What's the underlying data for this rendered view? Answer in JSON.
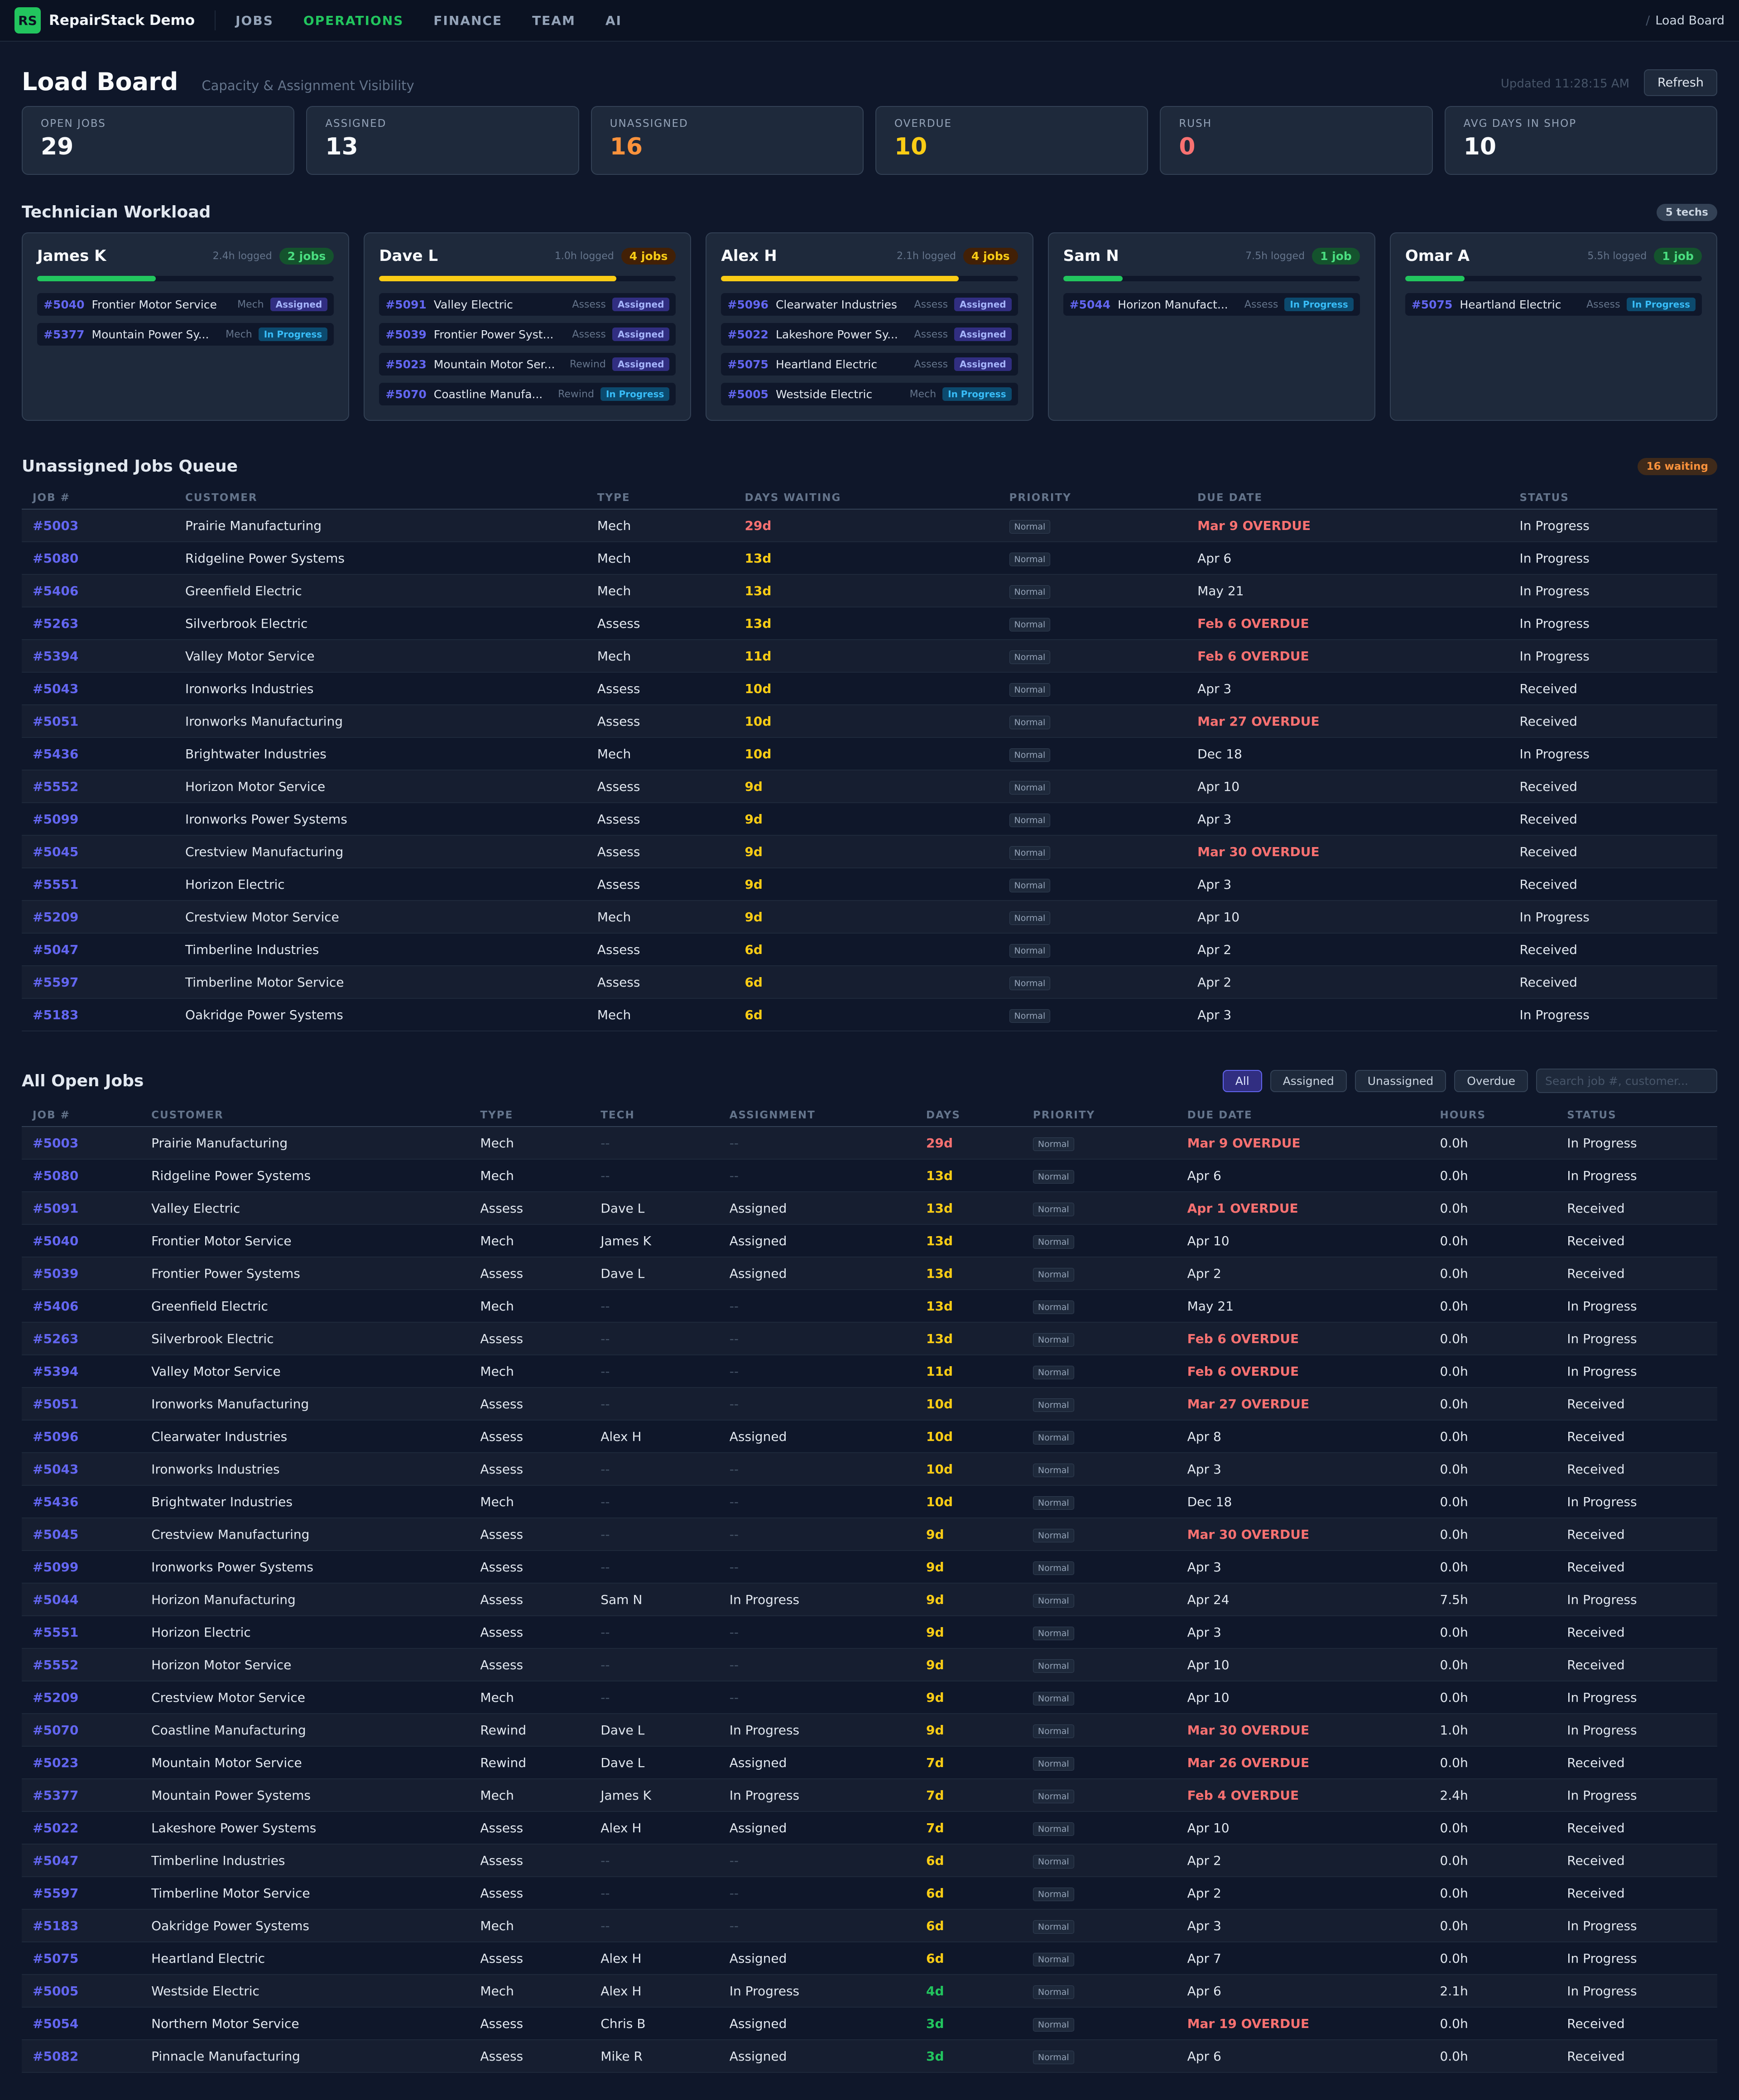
{
  "nav": {
    "logo": "RS",
    "brand": "RepairStack Demo",
    "items": [
      "JOBS",
      "OPERATIONS",
      "FINANCE",
      "TEAM",
      "AI"
    ],
    "active": "OPERATIONS",
    "breadcrumb": "Load Board"
  },
  "header": {
    "title": "Load Board",
    "subtitle": "Capacity & Assignment Visibility",
    "updated": "Updated 11:28:15 AM",
    "refresh": "Refresh"
  },
  "stats": [
    {
      "label": "OPEN JOBS",
      "value": "29",
      "color": ""
    },
    {
      "label": "ASSIGNED",
      "value": "13",
      "color": ""
    },
    {
      "label": "UNASSIGNED",
      "value": "16",
      "color": "c-orange"
    },
    {
      "label": "OVERDUE",
      "value": "10",
      "color": "c-yellow"
    },
    {
      "label": "RUSH",
      "value": "0",
      "color": "c-red"
    },
    {
      "label": "AVG DAYS IN SHOP",
      "value": "10",
      "color": ""
    }
  ],
  "workload": {
    "title": "Technician Workload",
    "badge": "5 techs",
    "techs": [
      {
        "name": "James K",
        "logged": "2.4h logged",
        "jobs_label": "2 jobs",
        "load": 0.4,
        "color": "green",
        "jobs": [
          {
            "id": "#5040",
            "customer": "Frontier Motor Service",
            "type": "Mech",
            "status": "Assigned"
          },
          {
            "id": "#5377",
            "customer": "Mountain Power Sy...",
            "type": "Mech",
            "status": "In Progress"
          }
        ]
      },
      {
        "name": "Dave L",
        "logged": "1.0h logged",
        "jobs_label": "4 jobs",
        "load": 0.8,
        "color": "yellow",
        "jobs": [
          {
            "id": "#5091",
            "customer": "Valley Electric",
            "type": "Assess",
            "status": "Assigned"
          },
          {
            "id": "#5039",
            "customer": "Frontier Power Syst...",
            "type": "Assess",
            "status": "Assigned"
          },
          {
            "id": "#5023",
            "customer": "Mountain Motor Ser...",
            "type": "Rewind",
            "status": "Assigned"
          },
          {
            "id": "#5070",
            "customer": "Coastline Manufa...",
            "type": "Rewind",
            "status": "In Progress"
          }
        ]
      },
      {
        "name": "Alex H",
        "logged": "2.1h logged",
        "jobs_label": "4 jobs",
        "load": 0.8,
        "color": "yellow",
        "jobs": [
          {
            "id": "#5096",
            "customer": "Clearwater Industries",
            "type": "Assess",
            "status": "Assigned"
          },
          {
            "id": "#5022",
            "customer": "Lakeshore Power Sy...",
            "type": "Assess",
            "status": "Assigned"
          },
          {
            "id": "#5075",
            "customer": "Heartland Electric",
            "type": "Assess",
            "status": "Assigned"
          },
          {
            "id": "#5005",
            "customer": "Westside Electric",
            "type": "Mech",
            "status": "In Progress"
          }
        ]
      },
      {
        "name": "Sam N",
        "logged": "7.5h logged",
        "jobs_label": "1 job",
        "load": 0.2,
        "color": "green",
        "jobs": [
          {
            "id": "#5044",
            "customer": "Horizon Manufact...",
            "type": "Assess",
            "status": "In Progress"
          }
        ]
      },
      {
        "name": "Omar A",
        "logged": "5.5h logged",
        "jobs_label": "1 job",
        "load": 0.2,
        "color": "green",
        "jobs": [
          {
            "id": "#5075",
            "customer": "Heartland Electric",
            "type": "Assess",
            "status": "In Progress"
          }
        ]
      }
    ]
  },
  "queue": {
    "title": "Unassigned Jobs Queue",
    "badge": "16 waiting",
    "columns": [
      "JOB #",
      "CUSTOMER",
      "TYPE",
      "DAYS WAITING",
      "PRIORITY",
      "DUE DATE",
      "STATUS"
    ],
    "rows": [
      [
        "#5003",
        "Prairie Manufacturing",
        "Mech",
        "29d",
        "Normal",
        "Mar 9 OVERDUE",
        "In Progress"
      ],
      [
        "#5080",
        "Ridgeline Power Systems",
        "Mech",
        "13d",
        "Normal",
        "Apr 6",
        "In Progress"
      ],
      [
        "#5406",
        "Greenfield Electric",
        "Mech",
        "13d",
        "Normal",
        "May 21",
        "In Progress"
      ],
      [
        "#5263",
        "Silverbrook Electric",
        "Assess",
        "13d",
        "Normal",
        "Feb 6 OVERDUE",
        "In Progress"
      ],
      [
        "#5394",
        "Valley Motor Service",
        "Mech",
        "11d",
        "Normal",
        "Feb 6 OVERDUE",
        "In Progress"
      ],
      [
        "#5043",
        "Ironworks Industries",
        "Assess",
        "10d",
        "Normal",
        "Apr 3",
        "Received"
      ],
      [
        "#5051",
        "Ironworks Manufacturing",
        "Assess",
        "10d",
        "Normal",
        "Mar 27 OVERDUE",
        "Received"
      ],
      [
        "#5436",
        "Brightwater Industries",
        "Mech",
        "10d",
        "Normal",
        "Dec 18",
        "In Progress"
      ],
      [
        "#5552",
        "Horizon Motor Service",
        "Assess",
        "9d",
        "Normal",
        "Apr 10",
        "Received"
      ],
      [
        "#5099",
        "Ironworks Power Systems",
        "Assess",
        "9d",
        "Normal",
        "Apr 3",
        "Received"
      ],
      [
        "#5045",
        "Crestview Manufacturing",
        "Assess",
        "9d",
        "Normal",
        "Mar 30 OVERDUE",
        "Received"
      ],
      [
        "#5551",
        "Horizon Electric",
        "Assess",
        "9d",
        "Normal",
        "Apr 3",
        "Received"
      ],
      [
        "#5209",
        "Crestview Motor Service",
        "Mech",
        "9d",
        "Normal",
        "Apr 10",
        "In Progress"
      ],
      [
        "#5047",
        "Timberline Industries",
        "Assess",
        "6d",
        "Normal",
        "Apr 2",
        "Received"
      ],
      [
        "#5597",
        "Timberline Motor Service",
        "Assess",
        "6d",
        "Normal",
        "Apr 2",
        "Received"
      ],
      [
        "#5183",
        "Oakridge Power Systems",
        "Mech",
        "6d",
        "Normal",
        "Apr 3",
        "In Progress"
      ]
    ]
  },
  "open_jobs": {
    "title": "All Open Jobs",
    "filters": [
      "All",
      "Assigned",
      "Unassigned",
      "Overdue"
    ],
    "active_filter": "All",
    "search_placeholder": "Search job #, customer...",
    "columns": [
      "JOB #",
      "CUSTOMER",
      "TYPE",
      "TECH",
      "ASSIGNMENT",
      "DAYS",
      "PRIORITY",
      "DUE DATE",
      "HOURS",
      "STATUS"
    ],
    "rows": [
      [
        "#5003",
        "Prairie Manufacturing",
        "Mech",
        "--",
        "--",
        "29d",
        "Normal",
        "Mar 9 OVERDUE",
        "0.0h",
        "In Progress"
      ],
      [
        "#5080",
        "Ridgeline Power Systems",
        "Mech",
        "--",
        "--",
        "13d",
        "Normal",
        "Apr 6",
        "0.0h",
        "In Progress"
      ],
      [
        "#5091",
        "Valley Electric",
        "Assess",
        "Dave L",
        "Assigned",
        "13d",
        "Normal",
        "Apr 1 OVERDUE",
        "0.0h",
        "Received"
      ],
      [
        "#5040",
        "Frontier Motor Service",
        "Mech",
        "James K",
        "Assigned",
        "13d",
        "Normal",
        "Apr 10",
        "0.0h",
        "Received"
      ],
      [
        "#5039",
        "Frontier Power Systems",
        "Assess",
        "Dave L",
        "Assigned",
        "13d",
        "Normal",
        "Apr 2",
        "0.0h",
        "Received"
      ],
      [
        "#5406",
        "Greenfield Electric",
        "Mech",
        "--",
        "--",
        "13d",
        "Normal",
        "May 21",
        "0.0h",
        "In Progress"
      ],
      [
        "#5263",
        "Silverbrook Electric",
        "Assess",
        "--",
        "--",
        "13d",
        "Normal",
        "Feb 6 OVERDUE",
        "0.0h",
        "In Progress"
      ],
      [
        "#5394",
        "Valley Motor Service",
        "Mech",
        "--",
        "--",
        "11d",
        "Normal",
        "Feb 6 OVERDUE",
        "0.0h",
        "In Progress"
      ],
      [
        "#5051",
        "Ironworks Manufacturing",
        "Assess",
        "--",
        "--",
        "10d",
        "Normal",
        "Mar 27 OVERDUE",
        "0.0h",
        "Received"
      ],
      [
        "#5096",
        "Clearwater Industries",
        "Assess",
        "Alex H",
        "Assigned",
        "10d",
        "Normal",
        "Apr 8",
        "0.0h",
        "Received"
      ],
      [
        "#5043",
        "Ironworks Industries",
        "Assess",
        "--",
        "--",
        "10d",
        "Normal",
        "Apr 3",
        "0.0h",
        "Received"
      ],
      [
        "#5436",
        "Brightwater Industries",
        "Mech",
        "--",
        "--",
        "10d",
        "Normal",
        "Dec 18",
        "0.0h",
        "In Progress"
      ],
      [
        "#5045",
        "Crestview Manufacturing",
        "Assess",
        "--",
        "--",
        "9d",
        "Normal",
        "Mar 30 OVERDUE",
        "0.0h",
        "Received"
      ],
      [
        "#5099",
        "Ironworks Power Systems",
        "Assess",
        "--",
        "--",
        "9d",
        "Normal",
        "Apr 3",
        "0.0h",
        "Received"
      ],
      [
        "#5044",
        "Horizon Manufacturing",
        "Assess",
        "Sam N",
        "In Progress",
        "9d",
        "Normal",
        "Apr 24",
        "7.5h",
        "In Progress"
      ],
      [
        "#5551",
        "Horizon Electric",
        "Assess",
        "--",
        "--",
        "9d",
        "Normal",
        "Apr 3",
        "0.0h",
        "Received"
      ],
      [
        "#5552",
        "Horizon Motor Service",
        "Assess",
        "--",
        "--",
        "9d",
        "Normal",
        "Apr 10",
        "0.0h",
        "Received"
      ],
      [
        "#5209",
        "Crestview Motor Service",
        "Mech",
        "--",
        "--",
        "9d",
        "Normal",
        "Apr 10",
        "0.0h",
        "In Progress"
      ],
      [
        "#5070",
        "Coastline Manufacturing",
        "Rewind",
        "Dave L",
        "In Progress",
        "9d",
        "Normal",
        "Mar 30 OVERDUE",
        "1.0h",
        "In Progress"
      ],
      [
        "#5023",
        "Mountain Motor Service",
        "Rewind",
        "Dave L",
        "Assigned",
        "7d",
        "Normal",
        "Mar 26 OVERDUE",
        "0.0h",
        "Received"
      ],
      [
        "#5377",
        "Mountain Power Systems",
        "Mech",
        "James K",
        "In Progress",
        "7d",
        "Normal",
        "Feb 4 OVERDUE",
        "2.4h",
        "In Progress"
      ],
      [
        "#5022",
        "Lakeshore Power Systems",
        "Assess",
        "Alex H",
        "Assigned",
        "7d",
        "Normal",
        "Apr 10",
        "0.0h",
        "Received"
      ],
      [
        "#5047",
        "Timberline Industries",
        "Assess",
        "--",
        "--",
        "6d",
        "Normal",
        "Apr 2",
        "0.0h",
        "Received"
      ],
      [
        "#5597",
        "Timberline Motor Service",
        "Assess",
        "--",
        "--",
        "6d",
        "Normal",
        "Apr 2",
        "0.0h",
        "Received"
      ],
      [
        "#5183",
        "Oakridge Power Systems",
        "Mech",
        "--",
        "--",
        "6d",
        "Normal",
        "Apr 3",
        "0.0h",
        "In Progress"
      ],
      [
        "#5075",
        "Heartland Electric",
        "Assess",
        "Alex H",
        "Assigned",
        "6d",
        "Normal",
        "Apr 7",
        "0.0h",
        "In Progress"
      ],
      [
        "#5005",
        "Westside Electric",
        "Mech",
        "Alex H",
        "In Progress",
        "4d",
        "Normal",
        "Apr 6",
        "2.1h",
        "In Progress"
      ],
      [
        "#5054",
        "Northern Motor Service",
        "Assess",
        "Chris B",
        "Assigned",
        "3d",
        "Normal",
        "Mar 19 OVERDUE",
        "0.0h",
        "Received"
      ],
      [
        "#5082",
        "Pinnacle Manufacturing",
        "Assess",
        "Mike R",
        "Assigned",
        "3d",
        "Normal",
        "Apr 6",
        "0.0h",
        "Received"
      ]
    ]
  },
  "colors": {
    "accent": "#22c55e",
    "link": "#6366f1",
    "overdue": "#f87171",
    "days_high": "#f87171",
    "days_mid": "#facc15",
    "days_low": "#22c55e",
    "background": "#0f172a"
  }
}
